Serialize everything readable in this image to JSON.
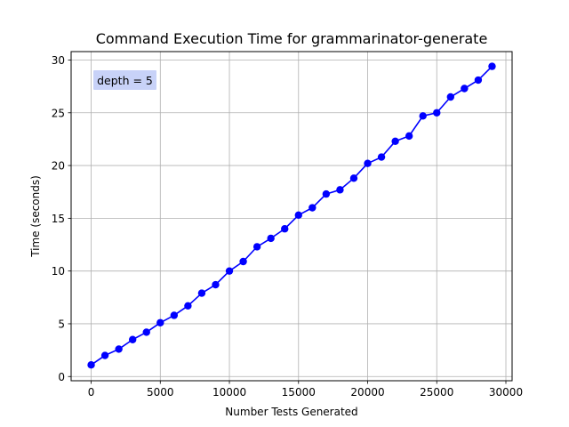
{
  "chart_data": {
    "type": "line",
    "title": "Command Execution Time for grammarinator-generate",
    "xlabel": "Number Tests Generated",
    "ylabel": "Time (seconds)",
    "xlim": [
      -1450,
      30450
    ],
    "ylim": [
      -0.4,
      30.8
    ],
    "xticks": [
      0,
      5000,
      10000,
      15000,
      20000,
      25000,
      30000
    ],
    "yticks": [
      0,
      5,
      10,
      15,
      20,
      25,
      30
    ],
    "grid": true,
    "annotation": "depth = 5",
    "colors": {
      "line": "#0000ff",
      "marker": "#0000ff",
      "annotation_bg": "#c8d2f8",
      "grid": "#b0b0b0"
    },
    "series": [
      {
        "x": [
          0,
          1000,
          2000,
          3000,
          4000,
          5000,
          6000,
          7000,
          8000,
          9000,
          10000,
          11000,
          12000,
          13000,
          14000,
          15000,
          16000,
          17000,
          18000,
          19000,
          20000,
          21000,
          22000,
          23000,
          24000,
          25000,
          26000,
          27000,
          28000,
          29000
        ],
        "y": [
          1.1,
          2.0,
          2.6,
          3.5,
          4.2,
          5.1,
          5.8,
          6.7,
          7.9,
          8.7,
          10.0,
          10.9,
          12.3,
          13.1,
          14.0,
          15.3,
          16.0,
          17.3,
          17.7,
          18.8,
          20.2,
          20.8,
          22.3,
          22.8,
          24.7,
          25.0,
          26.5,
          27.3,
          28.1,
          29.4
        ]
      }
    ]
  }
}
